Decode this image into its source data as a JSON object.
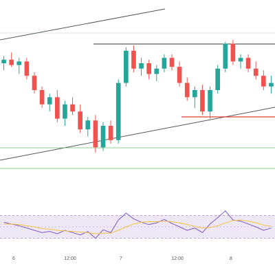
{
  "colors": {
    "up": "#26a69a",
    "down": "#ef5350",
    "trendline": "#555555",
    "resistance": "#333333",
    "support": "#e53935",
    "green_level": "#66bb6a",
    "rsi_line": "#7e57c2",
    "rsi_ma": "#f5c242",
    "rsi_band": "#ede7f6",
    "rsi_guides": "#9575cd"
  },
  "chart_data": [
    {
      "type": "candlestick",
      "title": "",
      "xlabel": "",
      "ylabel": "",
      "x_tick_labels": [
        "6",
        "12:00",
        "7",
        "12:00",
        "8"
      ],
      "y_axis_labels_visible": false,
      "grid": false,
      "candles_approx": [
        {
          "x": 0,
          "o": 105,
          "h": 109,
          "l": 101,
          "c": 107
        },
        {
          "x": 1,
          "o": 107,
          "h": 111,
          "l": 103,
          "c": 104
        },
        {
          "x": 2,
          "o": 104,
          "h": 108,
          "l": 99,
          "c": 106
        },
        {
          "x": 3,
          "o": 106,
          "h": 108,
          "l": 96,
          "c": 98
        },
        {
          "x": 4,
          "o": 98,
          "h": 100,
          "l": 88,
          "c": 90
        },
        {
          "x": 5,
          "o": 90,
          "h": 92,
          "l": 80,
          "c": 82
        },
        {
          "x": 6,
          "o": 82,
          "h": 88,
          "l": 78,
          "c": 86
        },
        {
          "x": 7,
          "o": 86,
          "h": 90,
          "l": 72,
          "c": 74
        },
        {
          "x": 8,
          "o": 74,
          "h": 84,
          "l": 70,
          "c": 82
        },
        {
          "x": 9,
          "o": 82,
          "h": 86,
          "l": 76,
          "c": 78
        },
        {
          "x": 10,
          "o": 78,
          "h": 82,
          "l": 66,
          "c": 68
        },
        {
          "x": 11,
          "o": 68,
          "h": 75,
          "l": 64,
          "c": 73
        },
        {
          "x": 12,
          "o": 73,
          "h": 76,
          "l": 55,
          "c": 58
        },
        {
          "x": 13,
          "o": 58,
          "h": 72,
          "l": 56,
          "c": 70
        },
        {
          "x": 14,
          "o": 70,
          "h": 73,
          "l": 60,
          "c": 62
        },
        {
          "x": 15,
          "o": 62,
          "h": 96,
          "l": 60,
          "c": 94
        },
        {
          "x": 16,
          "o": 94,
          "h": 114,
          "l": 92,
          "c": 112
        },
        {
          "x": 17,
          "o": 112,
          "h": 115,
          "l": 100,
          "c": 102
        },
        {
          "x": 18,
          "o": 102,
          "h": 108,
          "l": 98,
          "c": 105
        },
        {
          "x": 19,
          "o": 105,
          "h": 107,
          "l": 96,
          "c": 99
        },
        {
          "x": 20,
          "o": 99,
          "h": 104,
          "l": 95,
          "c": 102
        },
        {
          "x": 21,
          "o": 102,
          "h": 110,
          "l": 100,
          "c": 108
        },
        {
          "x": 22,
          "o": 108,
          "h": 110,
          "l": 101,
          "c": 103
        },
        {
          "x": 23,
          "o": 103,
          "h": 106,
          "l": 92,
          "c": 94
        },
        {
          "x": 24,
          "o": 94,
          "h": 97,
          "l": 84,
          "c": 86
        },
        {
          "x": 25,
          "o": 86,
          "h": 92,
          "l": 80,
          "c": 90
        },
        {
          "x": 26,
          "o": 90,
          "h": 93,
          "l": 76,
          "c": 78
        },
        {
          "x": 27,
          "o": 78,
          "h": 92,
          "l": 74,
          "c": 90
        },
        {
          "x": 28,
          "o": 90,
          "h": 104,
          "l": 88,
          "c": 102
        },
        {
          "x": 29,
          "o": 102,
          "h": 117,
          "l": 100,
          "c": 116
        },
        {
          "x": 30,
          "o": 116,
          "h": 118,
          "l": 104,
          "c": 106
        },
        {
          "x": 31,
          "o": 106,
          "h": 110,
          "l": 102,
          "c": 108
        },
        {
          "x": 32,
          "o": 108,
          "h": 110,
          "l": 100,
          "c": 102
        },
        {
          "x": 33,
          "o": 102,
          "h": 106,
          "l": 96,
          "c": 98
        },
        {
          "x": 34,
          "o": 98,
          "h": 101,
          "l": 90,
          "c": 92
        },
        {
          "x": 35,
          "o": 92,
          "h": 98,
          "l": 88,
          "c": 94
        }
      ],
      "rsi_approx": [
        58,
        55,
        52,
        48,
        44,
        40,
        42,
        38,
        44,
        40,
        36,
        42,
        30,
        45,
        40,
        62,
        74,
        64,
        58,
        54,
        57,
        63,
        56,
        50,
        44,
        48,
        40,
        55,
        66,
        78,
        62,
        60,
        55,
        50,
        44,
        48
      ],
      "rsi_ma_approx": [
        55,
        55,
        54,
        52,
        50,
        47,
        46,
        44,
        43,
        42,
        41,
        40,
        38,
        39,
        39,
        44,
        50,
        55,
        58,
        59,
        59,
        60,
        59,
        57,
        54,
        51,
        48,
        49,
        52,
        57,
        61,
        62,
        60,
        57,
        53,
        51
      ]
    }
  ]
}
